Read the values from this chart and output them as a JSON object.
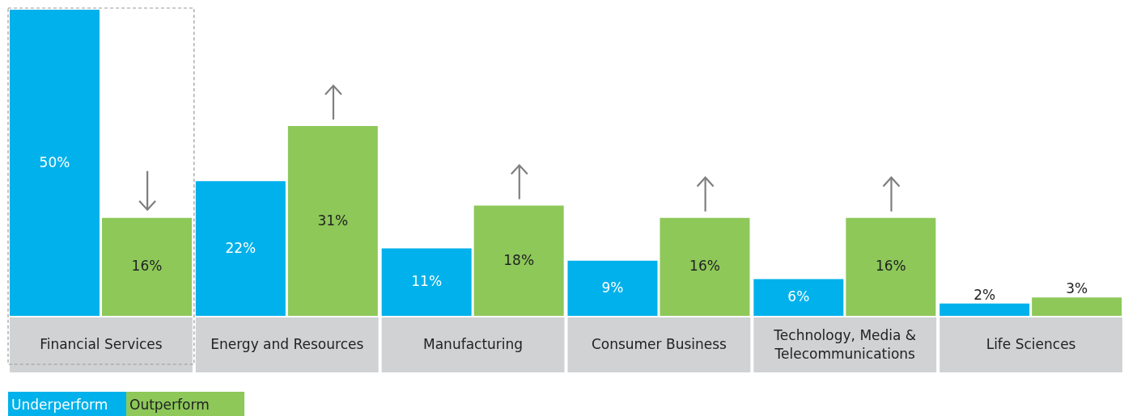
{
  "chart_data": {
    "type": "bar",
    "categories": [
      "Financial Services",
      "Energy and Resources",
      "Manufacturing",
      "Consumer Business",
      "Technology, Media & Telecommunications",
      "Life Sciences"
    ],
    "series": [
      {
        "name": "Underperform",
        "color": "#00b1eb",
        "values": [
          50,
          22,
          11,
          9,
          6,
          2
        ],
        "value_labels": [
          "50%",
          "22%",
          "11%",
          "9%",
          "6%",
          "2%"
        ]
      },
      {
        "name": "Outperform",
        "color": "#8dc859",
        "values": [
          16,
          31,
          18,
          16,
          16,
          3
        ],
        "value_labels": [
          "16%",
          "31%",
          "18%",
          "16%",
          "16%",
          "3%"
        ]
      }
    ],
    "legend": "bottom left"
  }
}
